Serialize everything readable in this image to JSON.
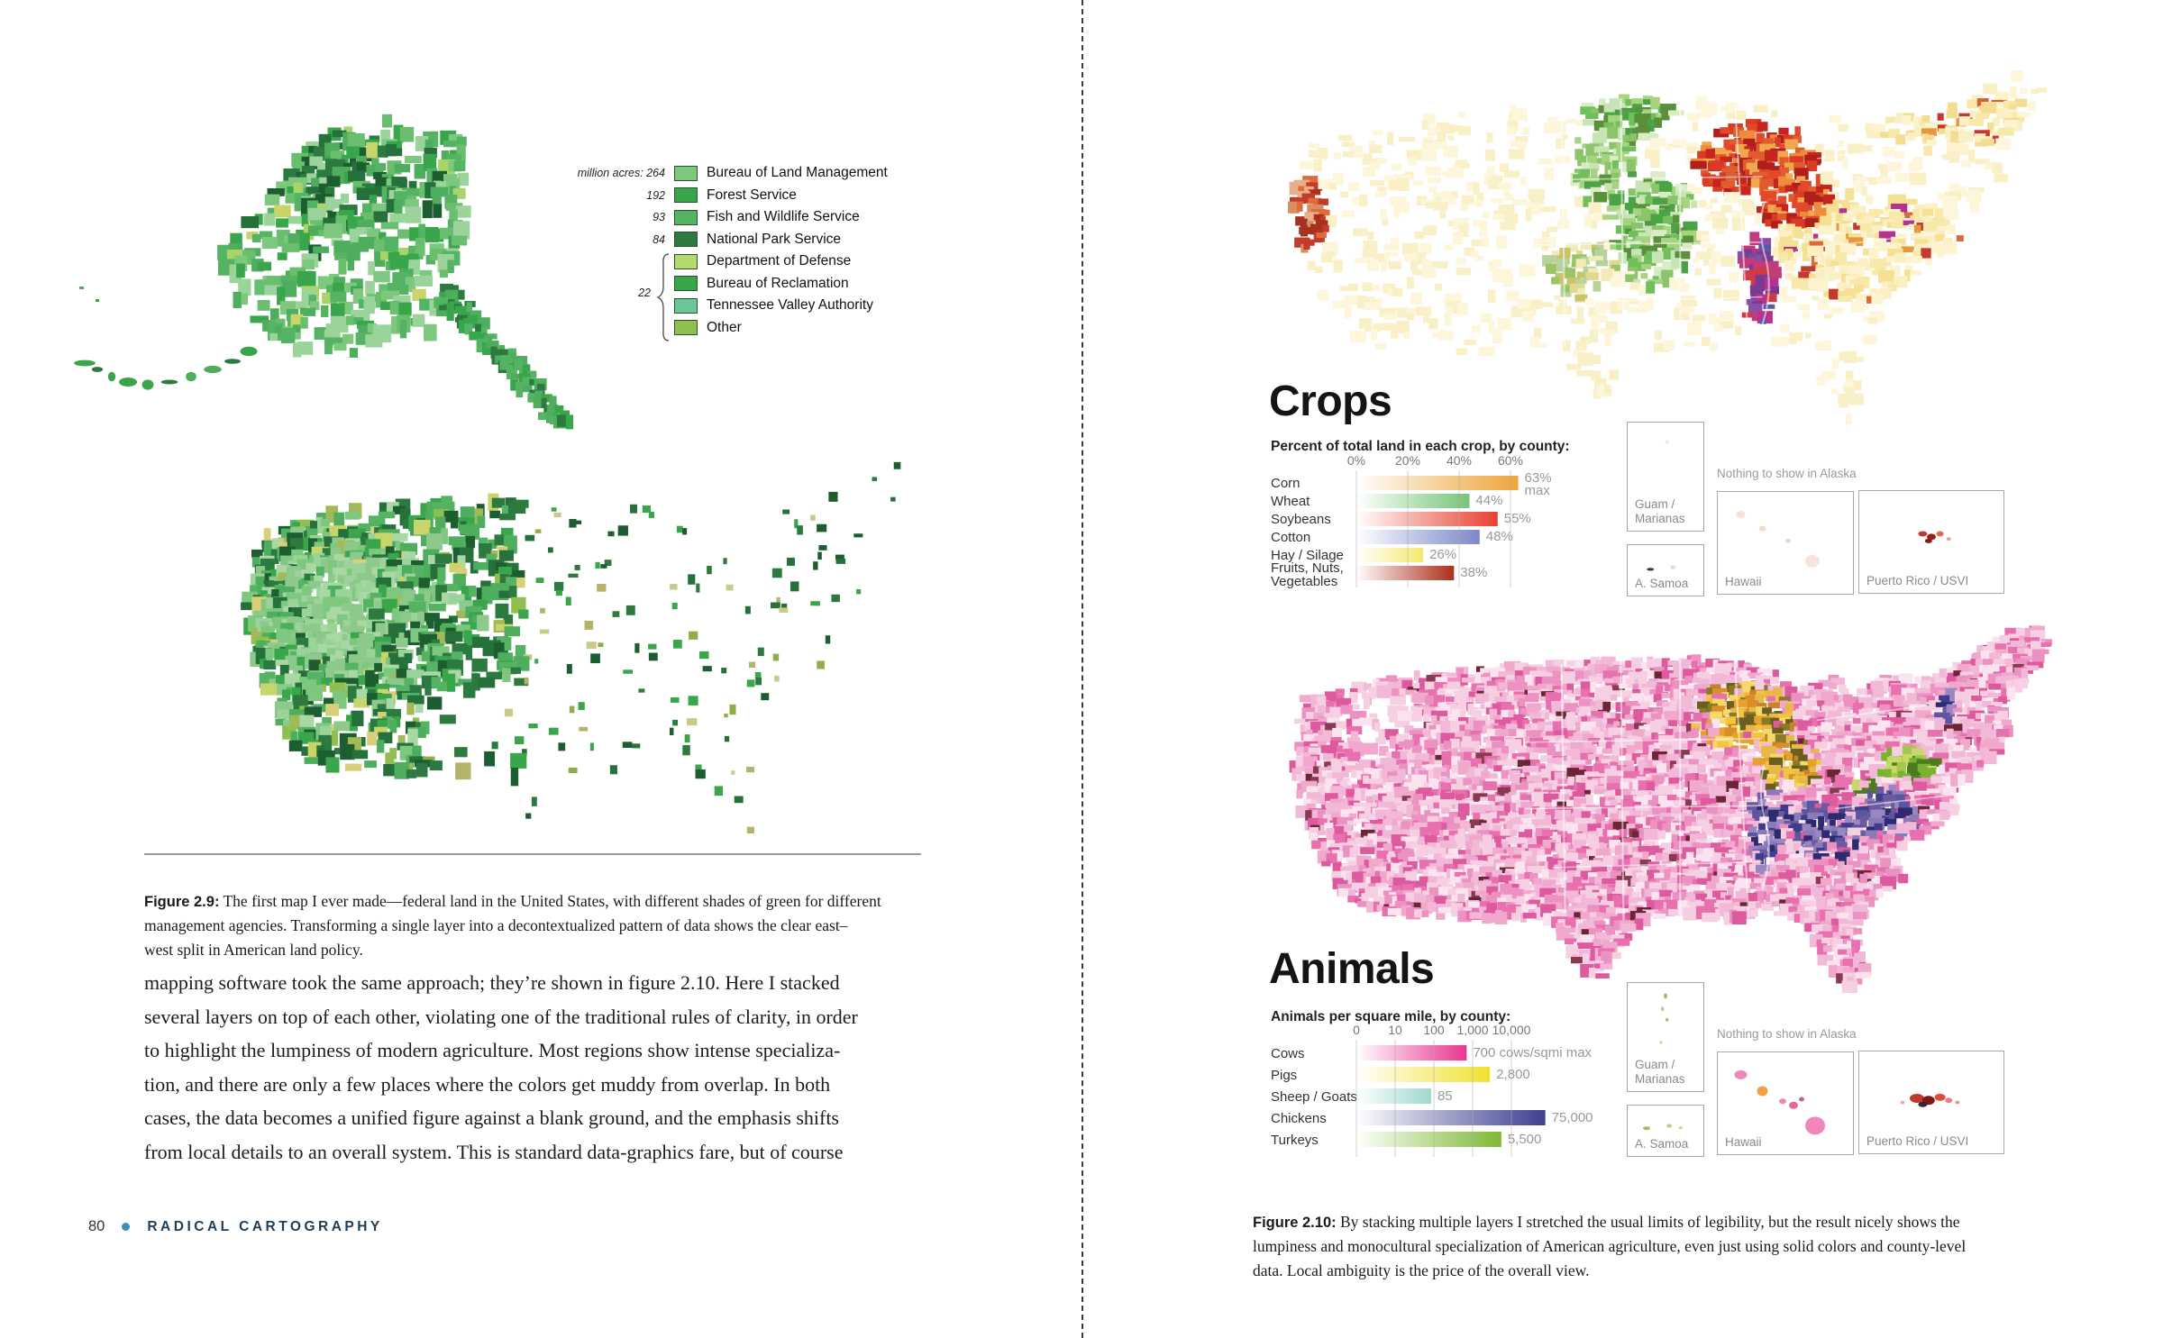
{
  "page_left": {
    "federal_legend": {
      "unit_prefix": "million acres:",
      "group_value": "22",
      "items": [
        {
          "value": "264",
          "label": "Bureau of Land Management",
          "color": "#7dc87e",
          "grouped": false
        },
        {
          "value": "192",
          "label": "Forest Service",
          "color": "#3aa64b",
          "grouped": false
        },
        {
          "value": "93",
          "label": "Fish and Wildlife Service",
          "color": "#55b364",
          "grouped": false
        },
        {
          "value": "84",
          "label": "National Park Service",
          "color": "#2c7a3f",
          "grouped": false
        },
        {
          "value": "",
          "label": "Department of Defense",
          "color": "#b4d96e",
          "grouped": true
        },
        {
          "value": "",
          "label": "Bureau of Reclamation",
          "color": "#3aa64b",
          "grouped": true
        },
        {
          "value": "",
          "label": "Tennessee Valley Authority",
          "color": "#6cc796",
          "grouped": true
        },
        {
          "value": "",
          "label": "Other",
          "color": "#8fc04f",
          "grouped": true
        }
      ]
    },
    "caption": {
      "label": "Figure 2.9:",
      "text": " The first map I ever made—federal land in the United States, with different shades of green for different\nmanagement agencies. Transforming a single layer into a decontextualized pattern of data shows the clear east–\nwest split in American land policy."
    },
    "body_text": "mapping software took the same approach; they’re shown in figure 2.10. Here I stacked\nseveral layers on top of each other, violating one of the traditional rules of clarity, in order\nto highlight the lumpiness of modern agriculture. Most regions show intense specializa-\ntion, and there are only a few places where the colors get muddy from overlap. In both\ncases, the data becomes a unified figure against a blank ground, and the emphasis shifts\nfrom local details to an overall system. This is standard data-graphics fare, but of course",
    "footer": {
      "page_number": "80",
      "book_title": "RADICAL CARTOGRAPHY"
    }
  },
  "page_right": {
    "crops": {
      "title": "Crops",
      "subtitle": "Percent of total land in each crop, by county:"
    },
    "animals": {
      "title": "Animals",
      "subtitle": "Animals per square mile, by county:"
    },
    "insets": {
      "guam_label": "Guam /\nMarianas",
      "samoa_label": "A. Samoa",
      "hawaii_label": "Hawaii",
      "pr_label": "Puerto Rico / USVI",
      "alaska_note": "Nothing to show in Alaska"
    },
    "caption": {
      "label": "Figure 2.10:",
      "text": " By stacking multiple layers I stretched the usual limits of legibility, but the result nicely shows the\nlumpiness and monocultural specialization of American agriculture, even just using solid colors and county-level\ndata. Local ambiguity is the price of the overall view."
    }
  },
  "chart_data": [
    {
      "type": "bar",
      "title": "Crops",
      "subtitle": "Percent of total land in each crop, by county:",
      "categories": [
        "Corn",
        "Wheat",
        "Soybeans",
        "Cotton",
        "Hay / Silage",
        "Fruits, Nuts,\nVegetables"
      ],
      "values": [
        63,
        44,
        55,
        48,
        26,
        38
      ],
      "value_labels": [
        "63%\nmax",
        "44%",
        "55%",
        "48%",
        "26%",
        "38%"
      ],
      "colors": [
        "#eda53b",
        "#76c478",
        "#e8402f",
        "#7c88c9",
        "#f5e96f",
        "#ad2e1a"
      ],
      "axis_ticks": [
        "0%",
        "20%",
        "40%",
        "60%"
      ],
      "axis_tick_values": [
        0,
        20,
        40,
        60
      ],
      "xlim": [
        0,
        60
      ],
      "scale": "linear",
      "grid": true,
      "xlabel": "",
      "ylabel": ""
    },
    {
      "type": "bar",
      "title": "Animals",
      "subtitle": "Animals per square mile, by county:",
      "categories": [
        "Cows",
        "Pigs",
        "Sheep / Goats",
        "Chickens",
        "Turkeys"
      ],
      "values": [
        700,
        2800,
        85,
        75000,
        5500
      ],
      "value_labels": [
        "700 cows/sqmi max",
        "2,800",
        "85",
        "75,000",
        "5,500"
      ],
      "colors": [
        "#e8368f",
        "#f0e230",
        "#9ed8cd",
        "#3d3f8f",
        "#7db832"
      ],
      "axis_ticks": [
        "0",
        "10",
        "100",
        "1,000",
        "10,000"
      ],
      "axis_tick_values": [
        1,
        10,
        100,
        1000,
        10000
      ],
      "scale": "log",
      "grid": true,
      "xlabel": "",
      "ylabel": ""
    }
  ]
}
